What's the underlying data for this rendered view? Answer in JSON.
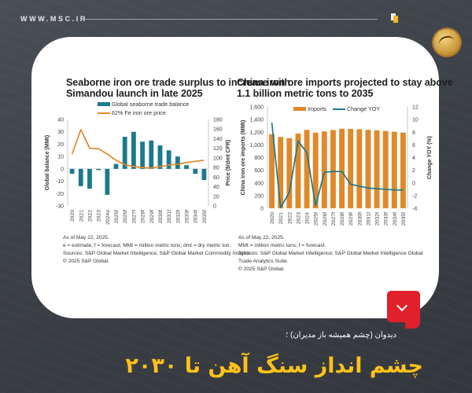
{
  "header": {
    "site_url": "WWW.MSC.IR",
    "icons": [
      "document-icon",
      "seal-logo-icon"
    ]
  },
  "colors": {
    "teal": "#1b7a8c",
    "orange": "#e0892b",
    "accent_red": "#e0202a",
    "headline_yellow": "#ffc21a"
  },
  "left_panel": {
    "title_line1": "Seaborne iron ore trade surplus to increase with",
    "title_line2": "Simandou launch in late 2025",
    "legend_bar": "Global seaborne trade balance",
    "legend_line": "62% Fe iron ore price",
    "ylabel_left": "Global balance (MMt)",
    "ylabel_right": "Price ($/dmt CFR)",
    "notes": [
      "As of May 22, 2025.",
      "e = estimate; f = forecast; MMt = million metric tons; dmt = dry metric ton.",
      "Sources: S&P Global Market Intelligence; S&P Global Market Commodity Insights.",
      "© 2025 S&P Global."
    ]
  },
  "right_panel": {
    "title_line1": "China iron ore imports projected to stay above",
    "title_line2": "1.1 billion metric tons to 2035",
    "legend_bar": "Imports",
    "legend_line": "Change YOY",
    "ylabel_left": "China iron ore imports (MMt)",
    "ylabel_right": "Change YOY (%)",
    "notes": [
      "As of May 22, 2025.",
      "MMt = million metric tons; f = forecast.",
      "Sources: S&P Global Market Intelligence; S&P Global Market Intelligence Global",
      "Trade Analytics Suite.",
      "© 2025 S&P Global."
    ]
  },
  "footer": {
    "badge_icon": "chevron-down-icon",
    "subtitle": "دیدوان (چشم همیشه باز مدیران) ؛",
    "headline": "چشم انداز سنگ آهن تا ۲۰۳۰"
  },
  "chart_data": [
    {
      "type": "bar",
      "title": "Seaborne iron ore trade surplus to increase with Simandou launch in late 2025",
      "categories": [
        "2020",
        "2021",
        "2022",
        "2023",
        "2024e",
        "2025f",
        "2026f",
        "2027f",
        "2028f",
        "2029f",
        "2030f",
        "2031f",
        "2032f",
        "2033f",
        "2034f",
        "2035f"
      ],
      "series": [
        {
          "name": "Global seaborne trade balance",
          "type": "bar",
          "axis": "left",
          "color": "#1b7a8c",
          "values": [
            -4,
            -14,
            -16,
            -1,
            -21,
            4,
            26,
            30,
            22,
            23,
            19,
            15,
            10,
            3,
            -4,
            -9
          ]
        },
        {
          "name": "62% Fe iron ore price",
          "type": "line",
          "axis": "right",
          "color": "#e0892b",
          "values": [
            108,
            159,
            120,
            119,
            108,
            95,
            86,
            82,
            80,
            79,
            82,
            85,
            87,
            90,
            93,
            95
          ]
        }
      ],
      "xlabel": "",
      "ylabel": "Global balance (MMt)",
      "ylabel_right": "Price ($/dmt CFR)",
      "ylim": [
        -30,
        40
      ],
      "ylim_right": [
        0,
        180
      ],
      "yticks": [
        -30,
        -20,
        -10,
        0,
        10,
        20,
        30,
        40
      ],
      "yticks_right": [
        0,
        20,
        40,
        60,
        80,
        100,
        120,
        140,
        160,
        180
      ],
      "grid": false,
      "legend_position": "top"
    },
    {
      "type": "bar",
      "title": "China iron ore imports projected to stay above 1.1 billion metric tons to 2035",
      "categories": [
        "2020",
        "2021",
        "2022",
        "2023",
        "2024",
        "2025f",
        "2026f",
        "2027f",
        "2028f",
        "2029f",
        "2030f",
        "2031f",
        "2032f",
        "2033f",
        "2034f",
        "2035f"
      ],
      "series": [
        {
          "name": "Imports",
          "type": "bar",
          "axis": "left",
          "color": "#e0892b",
          "values": [
            1170,
            1125,
            1107,
            1180,
            1237,
            1193,
            1213,
            1235,
            1255,
            1253,
            1248,
            1238,
            1230,
            1220,
            1208,
            1195
          ]
        },
        {
          "name": "Change YOY",
          "type": "line",
          "axis": "right",
          "color": "#1b7a8c",
          "values": [
            9.5,
            -3.9,
            -1.5,
            6.6,
            4.8,
            -3.6,
            1.7,
            1.8,
            1.8,
            -0.2,
            -0.5,
            -0.8,
            -0.9,
            -1.0,
            -1.1,
            -1.1
          ]
        }
      ],
      "xlabel": "",
      "ylabel": "China iron ore imports (MMt)",
      "ylabel_right": "Change YOY (%)",
      "ylim": [
        0,
        1600
      ],
      "ylim_right": [
        -4,
        12
      ],
      "yticks": [
        0,
        200,
        400,
        600,
        800,
        1000,
        1200,
        1400,
        1600
      ],
      "yticks_right": [
        -4,
        -2,
        0,
        2,
        4,
        6,
        8,
        10,
        12
      ],
      "grid": false,
      "legend_position": "top"
    }
  ]
}
